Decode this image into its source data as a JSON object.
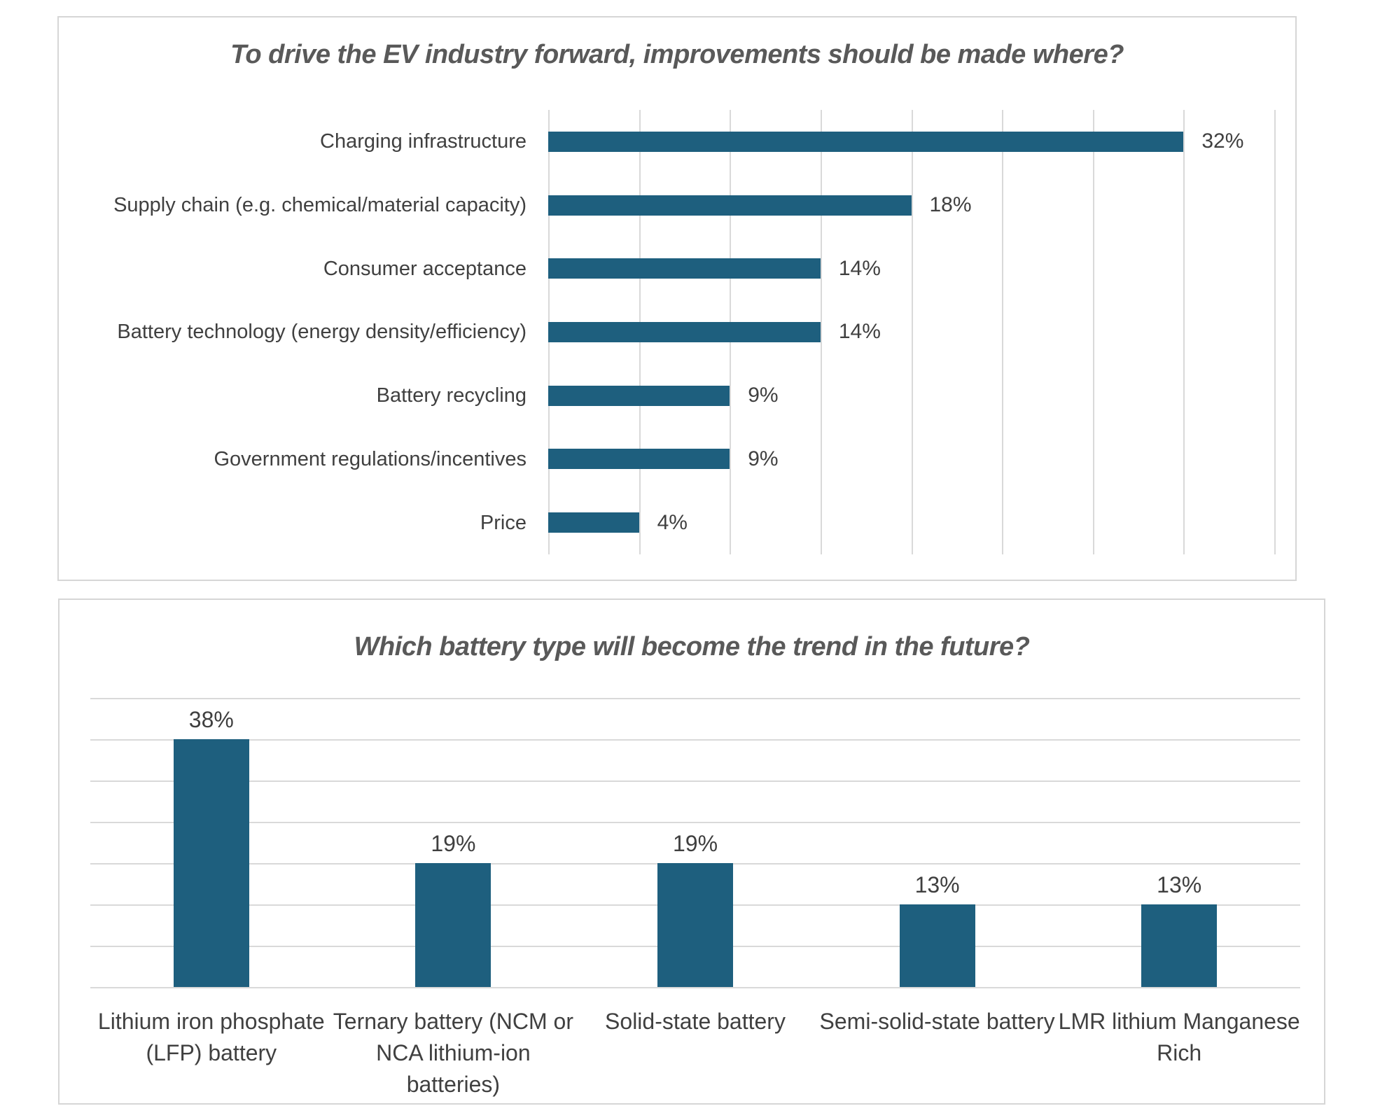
{
  "colors": {
    "bar": "#1e5f7e",
    "gridline": "#d9d9d9",
    "panel_border": "#d6d6d6",
    "title_text": "#595959",
    "label_text": "#404040",
    "background": "#ffffff"
  },
  "chart_data": [
    {
      "type": "bar",
      "orientation": "horizontal",
      "title": "To drive the EV industry forward, improvements should be made where?",
      "categories": [
        "Charging infrastructure",
        "Supply chain (e.g. chemical/material capacity)",
        "Consumer acceptance",
        "Battery technology (energy density/efficiency)",
        "Battery recycling",
        "Government regulations/incentives",
        "Price"
      ],
      "values": [
        32,
        18,
        14,
        14,
        9,
        9,
        4
      ],
      "value_labels": [
        "32%",
        "18%",
        "14%",
        "14%",
        "9%",
        "9%",
        "4%"
      ],
      "bar_units": [
        7,
        4,
        3,
        3,
        2,
        2,
        1
      ],
      "axis": {
        "unit_pct": 4.55,
        "total_units": 8,
        "gridline_count": 9,
        "axis_labels_shown": false,
        "grid": "vertical"
      },
      "legend": "none"
    },
    {
      "type": "bar",
      "orientation": "vertical",
      "title": "Which battery type will become the trend in the future?",
      "categories": [
        "Lithium iron phosphate (LFP) battery",
        "Ternary battery (NCM or NCA lithium-ion batteries)",
        "Solid-state battery",
        "Semi-solid-state battery",
        "LMR lithium Manganese Rich"
      ],
      "category_lines": [
        [
          "Lithium iron phosphate",
          "(LFP) battery"
        ],
        [
          "Ternary battery (NCM or",
          "NCA lithium-ion",
          "batteries)"
        ],
        [
          "Solid-state battery"
        ],
        [
          "Semi-solid-state battery"
        ],
        [
          "LMR lithium Manganese",
          "Rich"
        ]
      ],
      "values": [
        38,
        19,
        19,
        13,
        13
      ],
      "value_labels": [
        "38%",
        "19%",
        "19%",
        "13%",
        "13%"
      ],
      "bar_units": [
        6,
        3,
        3,
        2,
        2
      ],
      "axis": {
        "unit_pct": 6.25,
        "total_units": 7,
        "gridline_count": 8,
        "axis_labels_shown": false,
        "grid": "horizontal"
      },
      "legend": "none"
    }
  ]
}
